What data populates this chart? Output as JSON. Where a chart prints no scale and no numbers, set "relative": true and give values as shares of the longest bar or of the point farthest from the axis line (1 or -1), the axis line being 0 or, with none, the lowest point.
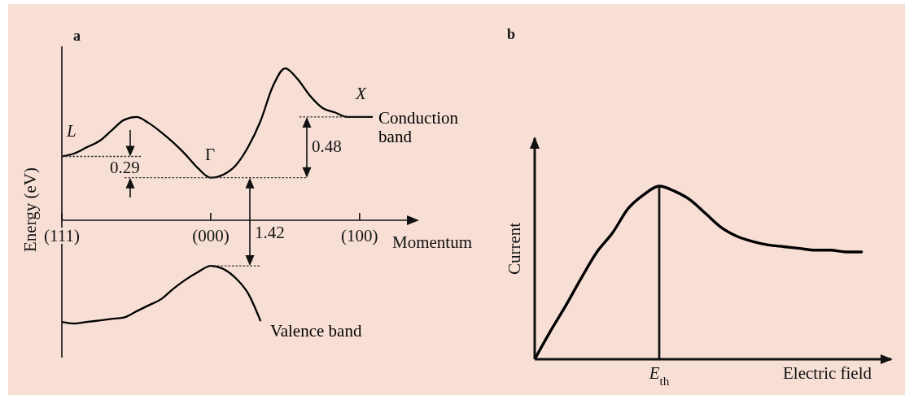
{
  "chart_data": [
    {
      "type": "line",
      "title": "a",
      "xlabel": "Momentum",
      "ylabel": "Energy (eV)",
      "relative": true,
      "marker": "none",
      "categories": [
        "(111)",
        null,
        null,
        null,
        null,
        null,
        null,
        null,
        null,
        null,
        null,
        null,
        "(000)",
        null,
        null,
        null,
        null,
        null,
        null,
        null,
        null,
        null,
        null,
        null,
        "(100)",
        null
      ],
      "series": [
        {
          "name": "Conduction band",
          "color": "#000000",
          "values": [
            0.42,
            0.44,
            0.48,
            0.52,
            0.59,
            0.66,
            0.68,
            0.64,
            0.58,
            0.51,
            0.43,
            0.34,
            0.28,
            0.3,
            0.36,
            0.48,
            0.65,
            0.88,
            1,
            0.93,
            0.82,
            0.74,
            0.71,
            0.68,
            0.68,
            0.68
          ]
        },
        {
          "name": "Valence band",
          "color": "#000000",
          "values": [
            -0.67,
            -0.68,
            -0.67,
            -0.66,
            -0.65,
            -0.64,
            -0.6,
            -0.56,
            -0.52,
            -0.45,
            -0.39,
            -0.34,
            -0.3,
            -0.32,
            -0.38,
            -0.48,
            -0.66,
            null,
            null,
            null,
            null,
            null,
            null,
            null,
            null,
            null
          ]
        }
      ],
      "annotations": [
        "L",
        "Γ",
        "X",
        "0.29",
        "0.48",
        "1.42"
      ]
    },
    {
      "type": "line",
      "title": "b",
      "xlabel": "Electric field",
      "ylabel": "Current",
      "relative": true,
      "marker": "none",
      "categories": [
        null,
        null,
        null,
        null,
        null,
        null,
        null,
        null,
        null,
        null,
        null,
        null,
        null,
        null,
        null,
        null,
        null,
        null,
        null,
        null,
        null,
        null
      ],
      "color": "#000000",
      "values": [
        0,
        0.16,
        0.31,
        0.47,
        0.62,
        0.73,
        0.87,
        0.95,
        1,
        0.97,
        0.92,
        0.84,
        0.76,
        0.71,
        0.68,
        0.66,
        0.65,
        0.64,
        0.63,
        0.63,
        0.62,
        0.62
      ],
      "annotations": [
        "E$_{th}$"
      ]
    }
  ]
}
